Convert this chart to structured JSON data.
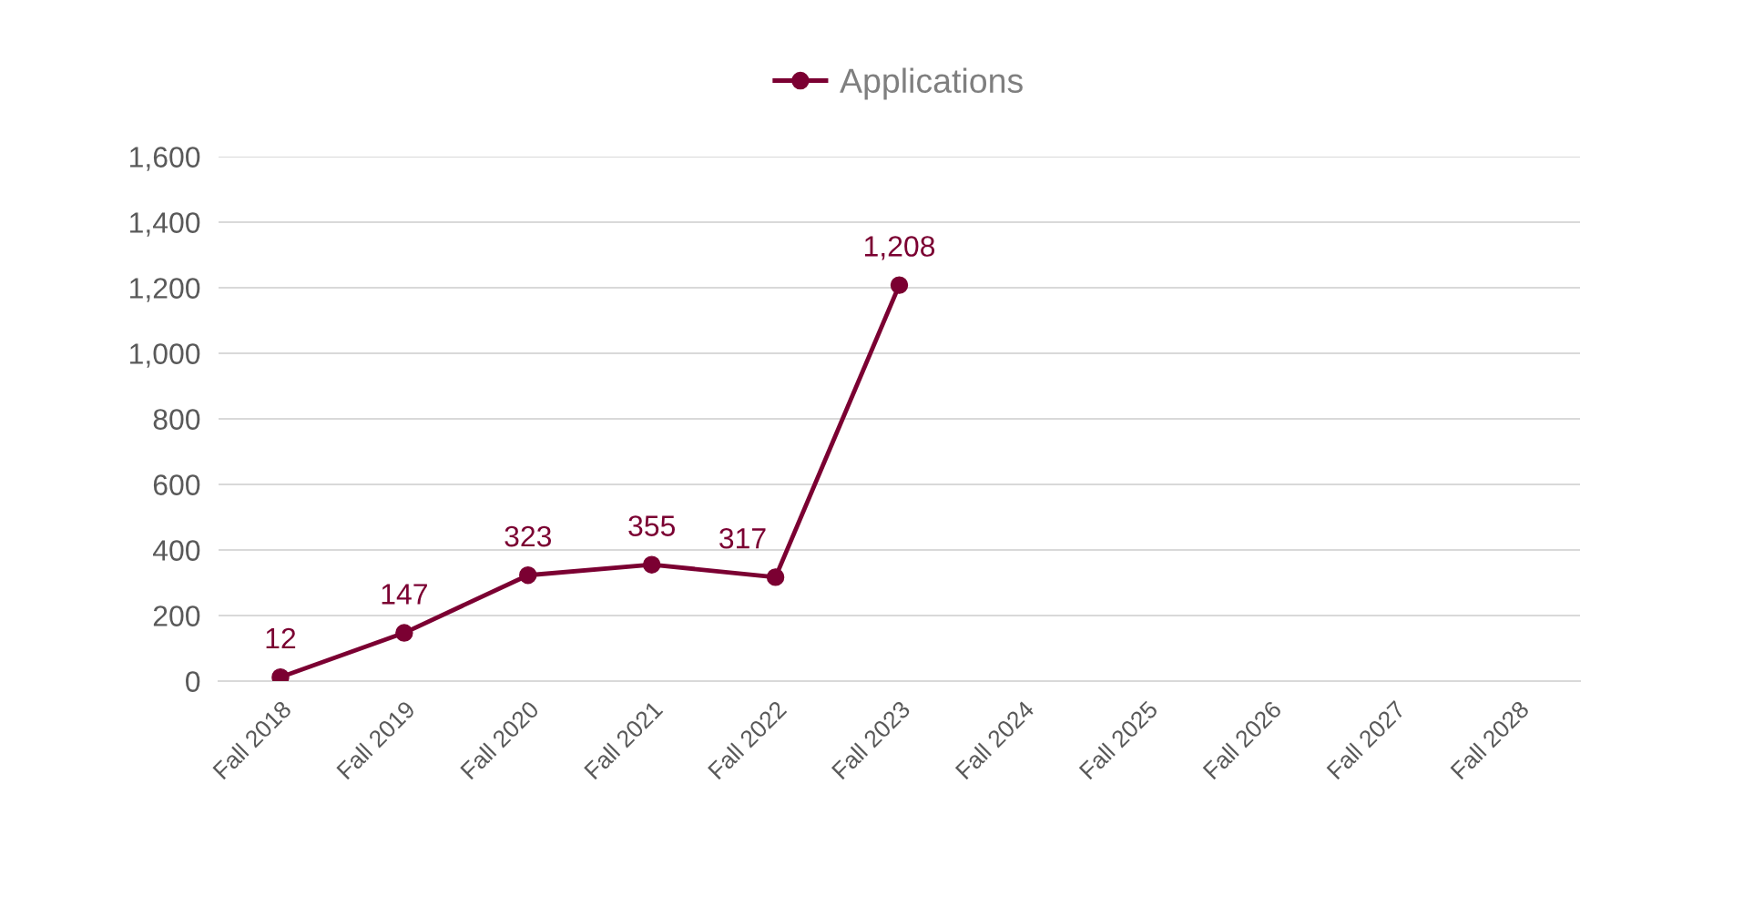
{
  "chart_data": {
    "type": "line",
    "categories": [
      "Fall 2018",
      "Fall 2019",
      "Fall 2020",
      "Fall 2021",
      "Fall 2022",
      "Fall 2023",
      "Fall 2024",
      "Fall 2025",
      "Fall 2026",
      "Fall 2027",
      "Fall 2028"
    ],
    "series": [
      {
        "name": "Applications",
        "color": "#7b0032",
        "values": [
          12,
          147,
          323,
          355,
          317,
          1208,
          null,
          null,
          null,
          null,
          null
        ],
        "value_labels": [
          "12",
          "147",
          "323",
          "355",
          "317",
          "1,208",
          null,
          null,
          null,
          null,
          null
        ]
      }
    ],
    "ylim": [
      0,
      1600
    ],
    "yticks": [
      {
        "value": 0,
        "label": "0"
      },
      {
        "value": 200,
        "label": "200"
      },
      {
        "value": 400,
        "label": "400"
      },
      {
        "value": 600,
        "label": "600"
      },
      {
        "value": 800,
        "label": "800"
      },
      {
        "value": 1000,
        "label": "1,000"
      },
      {
        "value": 1200,
        "label": "1,200"
      },
      {
        "value": 1400,
        "label": "1,400"
      },
      {
        "value": 1600,
        "label": "1,600"
      }
    ],
    "grid": "y",
    "legend": "top",
    "marker": "circle",
    "line_style": "solid"
  }
}
